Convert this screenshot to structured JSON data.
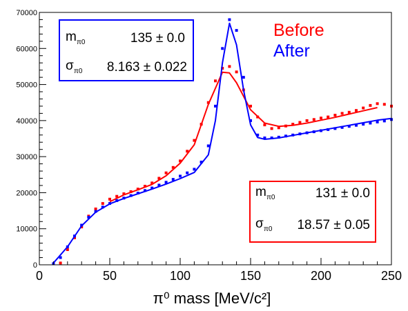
{
  "chart_data": {
    "type": "scatter",
    "xlabel": "π⁰ mass [MeV/c²]",
    "xlim": [
      0,
      250
    ],
    "ylim": [
      0,
      70000
    ],
    "x_ticks": [
      "0",
      "50",
      "100",
      "150",
      "200",
      "250"
    ],
    "y_ticks": [
      "0",
      "10000",
      "20000",
      "30000",
      "40000",
      "50000",
      "60000",
      "70000"
    ],
    "legend": {
      "placement": "top-right",
      "entries": [
        {
          "label": "Before",
          "color": "#ff0000"
        },
        {
          "label": "After",
          "color": "#0000ff"
        }
      ]
    },
    "fit_boxes": [
      {
        "series": "After",
        "placement": "top-left",
        "color": "#0000ff",
        "mass_label": "m",
        "mass_sub": "π0",
        "mass_value": "135 ± 0.0",
        "sigma_label": "σ",
        "sigma_sub": "π0",
        "sigma_value": "8.163 ± 0.022"
      },
      {
        "series": "Before",
        "placement": "bottom-right",
        "color": "#ff0000",
        "mass_label": "m",
        "mass_sub": "π0",
        "mass_value": "131 ± 0.0",
        "sigma_label": "σ",
        "sigma_sub": "π0",
        "sigma_value": "18.57 ± 0.05"
      }
    ],
    "series": [
      {
        "name": "Before",
        "color": "#ff0000",
        "x": [
          15,
          20,
          25,
          30,
          35,
          40,
          45,
          50,
          55,
          60,
          65,
          70,
          75,
          80,
          85,
          90,
          95,
          100,
          105,
          110,
          115,
          120,
          125,
          130,
          135,
          140,
          145,
          150,
          155,
          160,
          165,
          170,
          175,
          180,
          185,
          190,
          195,
          200,
          205,
          210,
          215,
          220,
          225,
          230,
          235,
          240,
          245,
          250
        ],
        "y": [
          500,
          4200,
          7500,
          10500,
          13500,
          15500,
          17000,
          18200,
          19000,
          19700,
          20300,
          21000,
          21800,
          22700,
          24000,
          25500,
          27000,
          28800,
          31500,
          34500,
          39000,
          45000,
          51000,
          54500,
          55000,
          53500,
          48500,
          44000,
          41000,
          38800,
          37800,
          38000,
          38500,
          39000,
          39500,
          40000,
          40300,
          40700,
          41000,
          41500,
          42000,
          42300,
          42800,
          43500,
          44200,
          44700,
          44500,
          44000
        ],
        "fit_x": [
          50,
          60,
          70,
          80,
          90,
          100,
          110,
          120,
          130,
          135,
          140,
          150,
          160,
          170,
          180,
          190,
          200,
          210,
          220,
          230,
          240
        ],
        "fit_y": [
          17500,
          19400,
          20800,
          22300,
          24700,
          28200,
          33300,
          44500,
          53400,
          53200,
          50500,
          43000,
          39300,
          38400,
          38700,
          39300,
          40100,
          40900,
          41800,
          42700,
          43600
        ]
      },
      {
        "name": "After",
        "color": "#0000ff",
        "x": [
          10,
          15,
          20,
          25,
          30,
          35,
          40,
          45,
          50,
          55,
          60,
          65,
          70,
          75,
          80,
          85,
          90,
          95,
          100,
          105,
          110,
          115,
          120,
          125,
          130,
          135,
          140,
          145,
          150,
          155,
          160,
          165,
          170,
          175,
          180,
          185,
          190,
          195,
          200,
          205,
          210,
          215,
          220,
          225,
          230,
          235,
          240,
          245,
          250
        ],
        "y": [
          300,
          2000,
          5000,
          8000,
          11000,
          13200,
          14800,
          16000,
          17000,
          17800,
          18500,
          19200,
          19900,
          20600,
          21300,
          22100,
          22900,
          23700,
          24600,
          25500,
          26500,
          28500,
          33000,
          44000,
          60000,
          68000,
          65000,
          52000,
          40000,
          36000,
          35200,
          35200,
          35400,
          35700,
          36000,
          36300,
          36600,
          36900,
          37200,
          37500,
          37800,
          38100,
          38400,
          38700,
          39000,
          39300,
          39600,
          39900,
          40300
        ],
        "fit_x": [
          10,
          20,
          30,
          40,
          50,
          60,
          70,
          80,
          90,
          100,
          110,
          120,
          125,
          130,
          135,
          140,
          145,
          150,
          155,
          160,
          170,
          180,
          190,
          200,
          210,
          220,
          230,
          240,
          250
        ],
        "fit_y": [
          500,
          5000,
          10800,
          14600,
          16900,
          18400,
          19700,
          21000,
          22400,
          23900,
          25600,
          30500,
          40000,
          56000,
          67000,
          61000,
          48500,
          38800,
          35300,
          34800,
          35200,
          35900,
          36600,
          37300,
          38000,
          38700,
          39400,
          40100,
          40600
        ]
      }
    ]
  }
}
